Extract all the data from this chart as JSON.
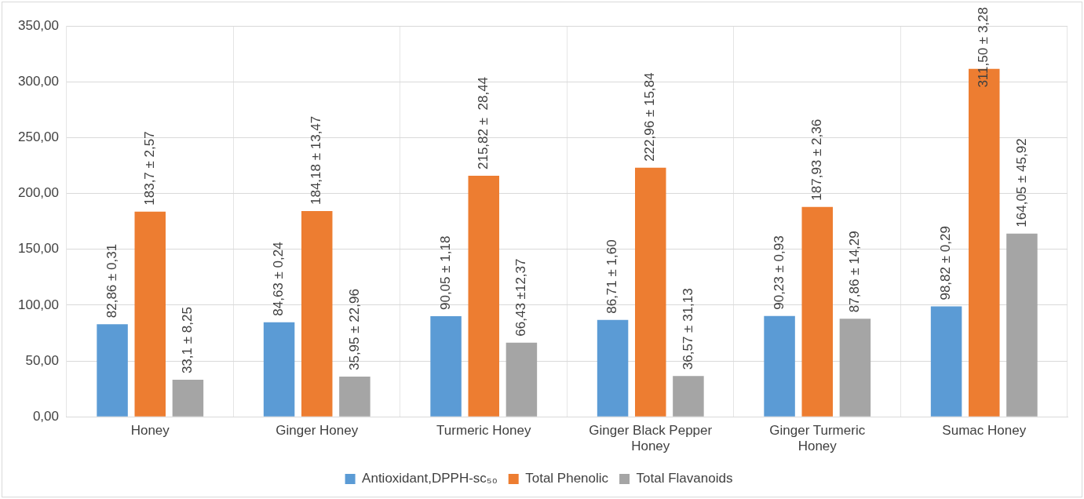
{
  "chart_data": {
    "type": "bar",
    "categories": [
      "Honey",
      "Ginger Honey",
      "Turmeric Honey",
      "Ginger Black Pepper Honey",
      "Ginger Turmeric Honey",
      "Sumac Honey"
    ],
    "series": [
      {
        "name": "Antioxidant,DPPH-sc₅₀",
        "color": "#5b9bd5",
        "values": [
          82.86,
          84.63,
          90.05,
          86.71,
          90.23,
          98.82
        ],
        "value_labels": [
          "82,86 ± 0,31",
          "84,63 ± 0,24",
          "90,05 ± 1,18",
          "86,71 ± 1,60",
          "90,23 ± 0,93",
          "98,82 ± 0,29"
        ]
      },
      {
        "name": "Total Phenolic",
        "color": "#ed7d31",
        "values": [
          183.7,
          184.18,
          215.82,
          222.96,
          187.93,
          311.5
        ],
        "value_labels": [
          "183,7 ± 2,57",
          "184,18 ± 13,47",
          "215,82 ±  28,44",
          "222,96 ± 15,84",
          "187,93 ± 2,36",
          "311,50 ± 3,28"
        ]
      },
      {
        "name": "Total Flavanoids",
        "color": "#a5a5a5",
        "values": [
          33.1,
          35.95,
          66.43,
          36.57,
          87.86,
          164.05
        ],
        "value_labels": [
          "33,1 ± 8,25",
          "35,95 ± 22,96",
          "66,43 ±12,37",
          "36,57 ± 31,13",
          "87,86 ± 14,29",
          "164,05 ± 45,92"
        ]
      }
    ],
    "ylim": [
      0,
      350
    ],
    "yticks": [
      {
        "value": 0,
        "label": "0,00"
      },
      {
        "value": 50,
        "label": "50,00"
      },
      {
        "value": 100,
        "label": "100,00"
      },
      {
        "value": 150,
        "label": "150,00"
      },
      {
        "value": 200,
        "label": "200,00"
      },
      {
        "value": 250,
        "label": "250,00"
      },
      {
        "value": 300,
        "label": "300,00"
      },
      {
        "value": 350,
        "label": "350,00"
      }
    ],
    "grid": true,
    "legend": "bottom"
  }
}
